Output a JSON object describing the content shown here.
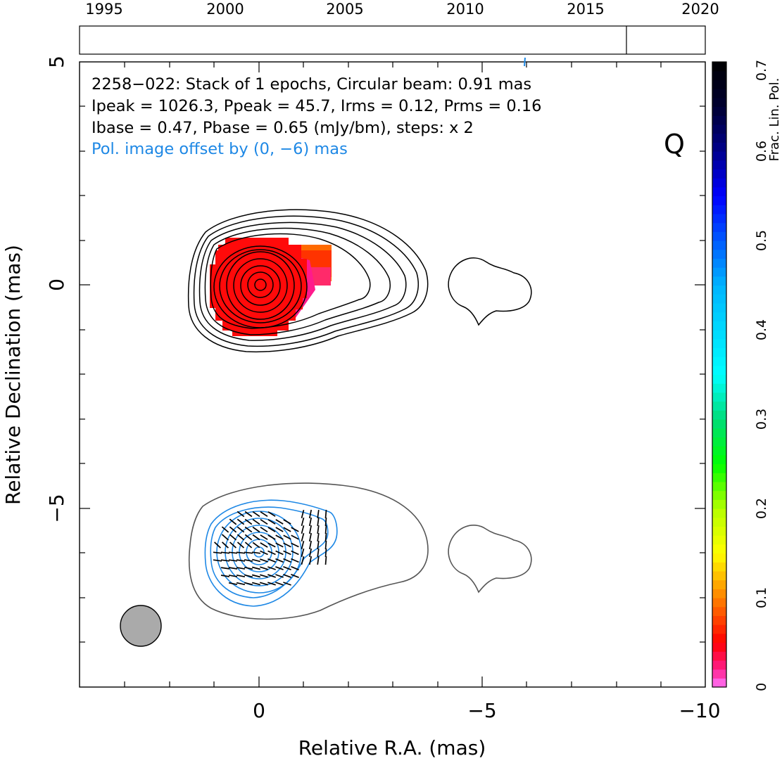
{
  "chart_data": {
    "type": "contour",
    "source": "2258-022",
    "band": "Q",
    "xlabel": "Relative R.A. (mas)",
    "ylabel": "Relative Declination (mas)",
    "xlim": [
      4,
      -10
    ],
    "ylim": [
      -9,
      5
    ],
    "x_ticks": [
      0,
      -5,
      -10
    ],
    "y_ticks": [
      5,
      0,
      -5
    ],
    "x_tick_labels": [
      "0",
      "−5",
      "−10"
    ],
    "y_tick_labels": [
      "5",
      "0",
      "−5"
    ],
    "info_lines": [
      "2258−022: Stack of 1 epochs, Circular beam: 0.91 mas",
      "Ipeak = 1026.3, Ppeak = 45.7, Irms = 0.12, Prms = 0.16",
      "Ibase = 0.47, Pbase = 0.65 (mJy/bm), steps: x 2"
    ],
    "offset_note": "Pol. image offset by (0, −6) mas",
    "beam": {
      "center_mas": [
        2.65,
        -7.75
      ],
      "diameter_mas": 0.91,
      "color": "#aaaaaa"
    },
    "epoch_timeline": {
      "range": [
        1995,
        2020
      ],
      "tick_labels": [
        "1995",
        "2000",
        "2005",
        "2010",
        "2015",
        "2020"
      ],
      "epochs": [
        2016.6
      ]
    },
    "colorbar": {
      "label": "Frac. Lin. Pol.",
      "range": [
        0,
        0.7
      ],
      "tick_labels": [
        "0",
        "0.1",
        "0.2",
        "0.3",
        "0.4",
        "0.5",
        "0.6",
        "0.7"
      ]
    },
    "polarization_patch": {
      "core_center_mas": [
        0,
        0
      ],
      "core_radius_mas": 1.1,
      "extension_box_mas": [
        [
          -0.5,
          0.9
        ],
        [
          -1.6,
          -0.15
        ]
      ],
      "values": "approx. 0.02–0.10 fractional polarization"
    },
    "colors": {
      "stokes_i_contours": "#000000",
      "lower_i_contours": "#555555",
      "pol_contours": "#1e88e5",
      "offset_note_text": "#1e88e5",
      "evpa_ticks": "#000000"
    }
  }
}
